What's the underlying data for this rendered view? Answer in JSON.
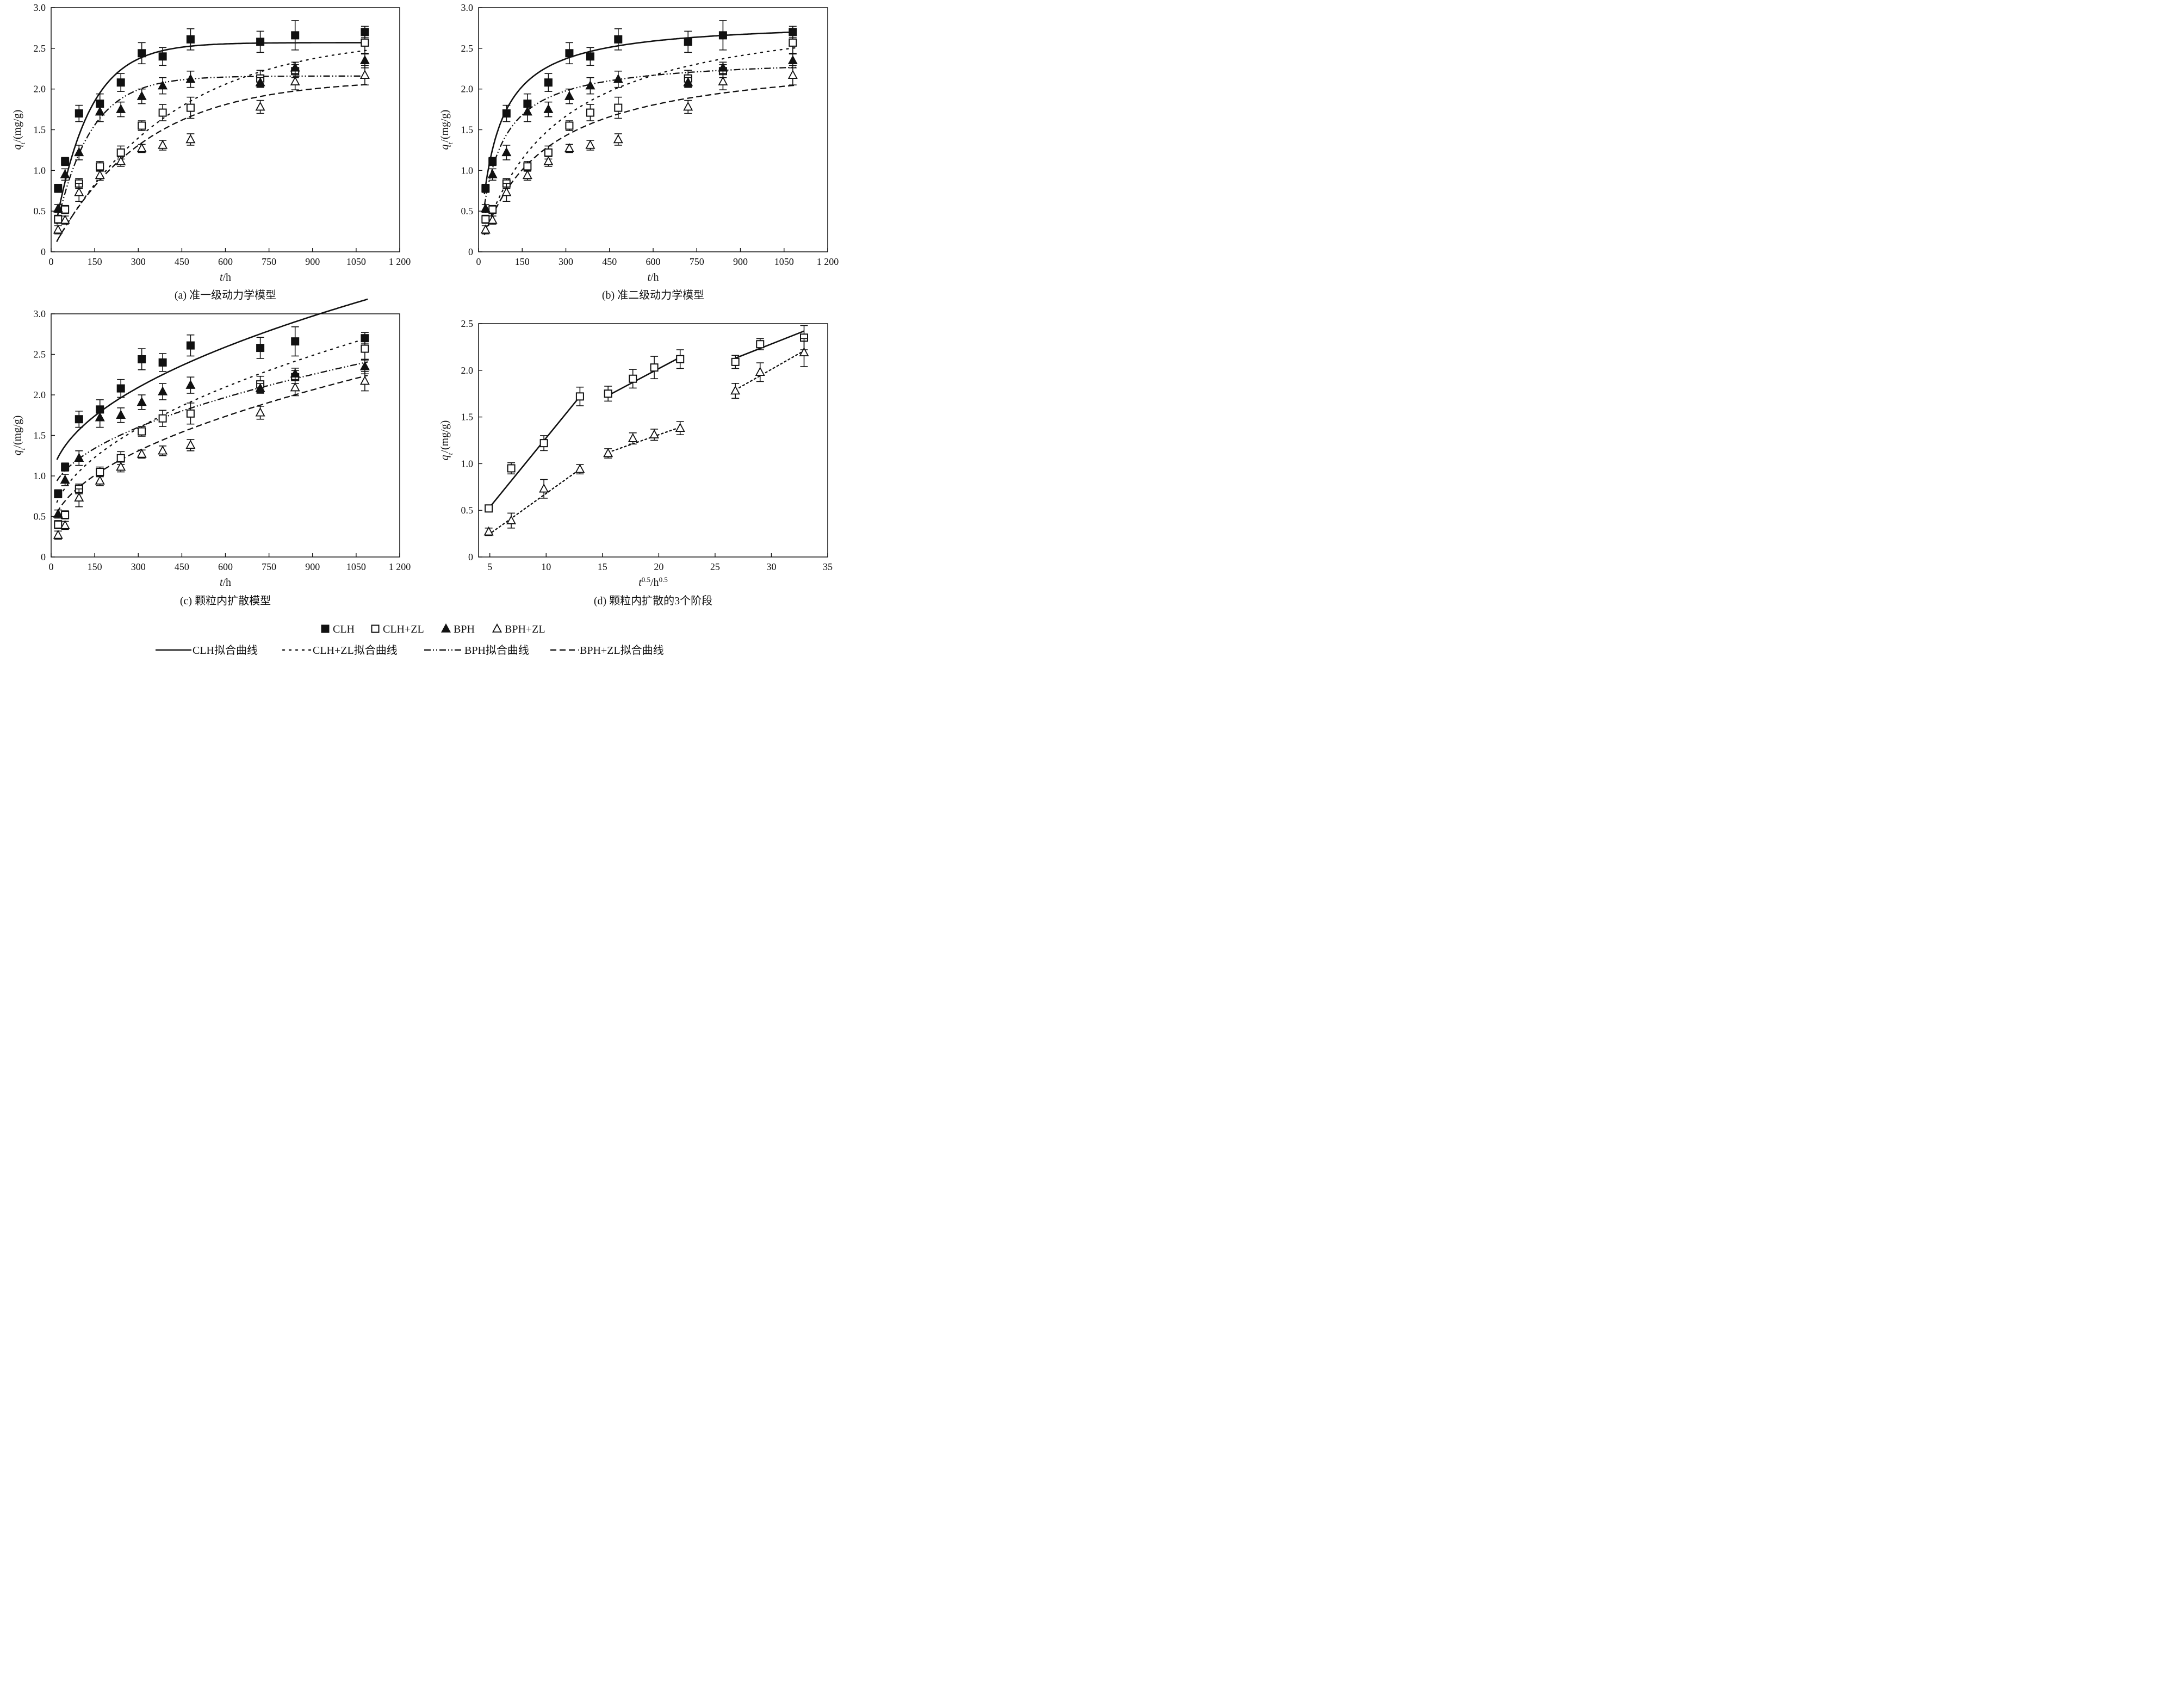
{
  "legend": {
    "markers": [
      {
        "key": "CLH",
        "label": "CLH",
        "marker": "filled-square"
      },
      {
        "key": "CLHZL",
        "label": "CLH+ZL",
        "marker": "open-square"
      },
      {
        "key": "BPH",
        "label": "BPH",
        "marker": "filled-triangle"
      },
      {
        "key": "BPHZL",
        "label": "BPH+ZL",
        "marker": "open-triangle"
      }
    ],
    "lines": [
      {
        "key": "CLH",
        "label": "CLH拟合曲线",
        "dash": "solid"
      },
      {
        "key": "CLHZL",
        "label": "CLH+ZL拟合曲线",
        "dash": "dotted"
      },
      {
        "key": "BPH",
        "label": "BPH拟合曲线",
        "dash": "dash-dot-dot"
      },
      {
        "key": "BPHZL",
        "label": "BPH+ZL拟合曲线",
        "dash": "dashed"
      }
    ]
  },
  "chart_data": [
    {
      "id": "a",
      "caption": "(a)  准一级动力学模型",
      "type": "scatter",
      "xlabel": {
        "var": "t",
        "unit": "/h"
      },
      "ylabel": {
        "var": "q",
        "sub": "t",
        "unit": "/(mg/g)"
      },
      "xlim": [
        0,
        1200
      ],
      "ylim": [
        0,
        3.0
      ],
      "xticks": [
        0,
        150,
        300,
        450,
        600,
        750,
        900,
        1050,
        1200
      ],
      "xtick_labels": [
        "0",
        "150",
        "300",
        "450",
        "600",
        "750",
        "900",
        "1050",
        "1 200"
      ],
      "yticks": [
        0,
        0.5,
        1.0,
        1.5,
        2.0,
        2.5,
        3.0
      ],
      "ytick_labels": [
        "0",
        "0.5",
        "1.0",
        "1.5",
        "2.0",
        "2.5",
        "3.0"
      ],
      "grid": false,
      "series": [
        {
          "key": "CLH",
          "x": [
            24,
            48,
            96,
            168,
            240,
            312,
            384,
            480,
            720,
            840,
            1080
          ],
          "y": [
            0.78,
            1.11,
            1.7,
            1.82,
            2.08,
            2.44,
            2.4,
            2.61,
            2.58,
            2.66,
            2.7
          ],
          "err": [
            0.05,
            0.05,
            0.1,
            0.12,
            0.11,
            0.13,
            0.11,
            0.13,
            0.13,
            0.18,
            0.07
          ]
        },
        {
          "key": "CLHZL",
          "x": [
            24,
            48,
            96,
            168,
            240,
            312,
            384,
            480,
            720,
            840,
            1080
          ],
          "y": [
            0.4,
            0.52,
            0.84,
            1.05,
            1.22,
            1.55,
            1.71,
            1.77,
            2.13,
            2.22,
            2.57
          ],
          "err": [
            0.05,
            0.05,
            0.06,
            0.06,
            0.08,
            0.06,
            0.1,
            0.13,
            0.1,
            0.08,
            0.14
          ]
        },
        {
          "key": "BPH",
          "x": [
            24,
            48,
            96,
            168,
            240,
            312,
            384,
            480,
            720,
            840,
            1080
          ],
          "y": [
            0.53,
            0.95,
            1.22,
            1.72,
            1.75,
            1.91,
            2.04,
            2.12,
            2.08,
            2.26,
            2.35
          ],
          "err": [
            0.05,
            0.07,
            0.09,
            0.12,
            0.09,
            0.09,
            0.1,
            0.1,
            0.06,
            0.07,
            0.09
          ]
        },
        {
          "key": "BPHZL",
          "x": [
            24,
            48,
            96,
            168,
            240,
            312,
            384,
            480,
            720,
            840,
            1080
          ],
          "y": [
            0.27,
            0.39,
            0.73,
            0.94,
            1.11,
            1.27,
            1.31,
            1.38,
            1.78,
            2.09,
            2.17
          ],
          "err": [
            0.05,
            0.05,
            0.11,
            0.06,
            0.06,
            0.05,
            0.06,
            0.07,
            0.08,
            0.1,
            0.12
          ]
        }
      ],
      "fits": [
        {
          "key": "CLH",
          "model": "PFO",
          "qe": 2.57,
          "k": 0.0085
        },
        {
          "key": "CLHZL",
          "model": "PFO",
          "qe": 2.65,
          "k": 0.0025
        },
        {
          "key": "BPH",
          "model": "PFO",
          "qe": 2.16,
          "k": 0.0085
        },
        {
          "key": "BPHZL",
          "model": "PFO",
          "qe": 2.12,
          "k": 0.0032
        }
      ],
      "fit_x_range": [
        20,
        1090
      ]
    },
    {
      "id": "b",
      "caption": "(b)  准二级动力学模型",
      "type": "scatter",
      "xlabel": {
        "var": "t",
        "unit": "/h"
      },
      "ylabel": {
        "var": "q",
        "sub": "t",
        "unit": "/(mg/g)"
      },
      "xlim": [
        0,
        1200
      ],
      "ylim": [
        0,
        3.0
      ],
      "xticks": [
        0,
        150,
        300,
        450,
        600,
        750,
        900,
        1050,
        1200
      ],
      "xtick_labels": [
        "0",
        "150",
        "300",
        "450",
        "600",
        "750",
        "900",
        "1050",
        "1 200"
      ],
      "yticks": [
        0,
        0.5,
        1.0,
        1.5,
        2.0,
        2.5,
        3.0
      ],
      "ytick_labels": [
        "0",
        "0.5",
        "1.0",
        "1.5",
        "2.0",
        "2.5",
        "3.0"
      ],
      "grid": false,
      "series": [
        {
          "key": "CLH",
          "x": [
            24,
            48,
            96,
            168,
            240,
            312,
            384,
            480,
            720,
            840,
            1080
          ],
          "y": [
            0.78,
            1.11,
            1.7,
            1.82,
            2.08,
            2.44,
            2.4,
            2.61,
            2.58,
            2.66,
            2.7
          ],
          "err": [
            0.05,
            0.05,
            0.1,
            0.12,
            0.11,
            0.13,
            0.11,
            0.13,
            0.13,
            0.18,
            0.07
          ]
        },
        {
          "key": "CLHZL",
          "x": [
            24,
            48,
            96,
            168,
            240,
            312,
            384,
            480,
            720,
            840,
            1080
          ],
          "y": [
            0.4,
            0.52,
            0.84,
            1.05,
            1.22,
            1.55,
            1.71,
            1.77,
            2.13,
            2.22,
            2.57
          ],
          "err": [
            0.05,
            0.05,
            0.06,
            0.06,
            0.08,
            0.06,
            0.1,
            0.13,
            0.1,
            0.08,
            0.14
          ]
        },
        {
          "key": "BPH",
          "x": [
            24,
            48,
            96,
            168,
            240,
            312,
            384,
            480,
            720,
            840,
            1080
          ],
          "y": [
            0.53,
            0.95,
            1.22,
            1.72,
            1.75,
            1.91,
            2.04,
            2.12,
            2.08,
            2.26,
            2.35
          ],
          "err": [
            0.05,
            0.07,
            0.09,
            0.12,
            0.09,
            0.09,
            0.1,
            0.1,
            0.06,
            0.07,
            0.09
          ]
        },
        {
          "key": "BPHZL",
          "x": [
            24,
            48,
            96,
            168,
            240,
            312,
            384,
            480,
            720,
            840,
            1080
          ],
          "y": [
            0.27,
            0.39,
            0.73,
            0.94,
            1.11,
            1.27,
            1.31,
            1.38,
            1.78,
            2.09,
            2.17
          ],
          "err": [
            0.05,
            0.05,
            0.11,
            0.06,
            0.06,
            0.05,
            0.06,
            0.07,
            0.08,
            0.1,
            0.12
          ]
        }
      ],
      "fits": [
        {
          "key": "CLH",
          "model": "PSO",
          "qe": 2.85,
          "k": 0.0058
        },
        {
          "key": "CLHZL",
          "model": "PSO",
          "qe": 3.1,
          "k": 0.00125
        },
        {
          "key": "BPH",
          "model": "PSO",
          "qe": 2.4,
          "k": 0.0065
        },
        {
          "key": "BPHZL",
          "model": "PSO",
          "qe": 2.45,
          "k": 0.0019
        }
      ],
      "fit_x_range": [
        20,
        1090
      ]
    },
    {
      "id": "c",
      "caption": "(c)  颗粒内扩散模型",
      "type": "scatter",
      "xlabel": {
        "var": "t",
        "unit": "/h"
      },
      "ylabel": {
        "var": "q",
        "sub": "t",
        "unit": "/(mg/g)"
      },
      "xlim": [
        0,
        1200
      ],
      "ylim": [
        0,
        3.0
      ],
      "xticks": [
        0,
        150,
        300,
        450,
        600,
        750,
        900,
        1050,
        1200
      ],
      "xtick_labels": [
        "0",
        "150",
        "300",
        "450",
        "600",
        "750",
        "900",
        "1050",
        "1 200"
      ],
      "yticks": [
        0,
        0.5,
        1.0,
        1.5,
        2.0,
        2.5,
        3.0
      ],
      "ytick_labels": [
        "0",
        "0.5",
        "1.0",
        "1.5",
        "2.0",
        "2.5",
        "3.0"
      ],
      "grid": false,
      "series": [
        {
          "key": "CLH",
          "x": [
            24,
            48,
            96,
            168,
            240,
            312,
            384,
            480,
            720,
            840,
            1080
          ],
          "y": [
            0.78,
            1.11,
            1.7,
            1.82,
            2.08,
            2.44,
            2.4,
            2.61,
            2.58,
            2.66,
            2.7
          ],
          "err": [
            0.05,
            0.05,
            0.1,
            0.12,
            0.11,
            0.13,
            0.11,
            0.13,
            0.13,
            0.18,
            0.07
          ]
        },
        {
          "key": "CLHZL",
          "x": [
            24,
            48,
            96,
            168,
            240,
            312,
            384,
            480,
            720,
            840,
            1080
          ],
          "y": [
            0.4,
            0.52,
            0.84,
            1.05,
            1.22,
            1.55,
            1.71,
            1.77,
            2.13,
            2.22,
            2.57
          ],
          "err": [
            0.05,
            0.05,
            0.06,
            0.06,
            0.08,
            0.06,
            0.1,
            0.13,
            0.1,
            0.08,
            0.14
          ]
        },
        {
          "key": "BPH",
          "x": [
            24,
            48,
            96,
            168,
            240,
            312,
            384,
            480,
            720,
            840,
            1080
          ],
          "y": [
            0.53,
            0.95,
            1.22,
            1.72,
            1.75,
            1.91,
            2.04,
            2.12,
            2.08,
            2.26,
            2.35
          ],
          "err": [
            0.05,
            0.07,
            0.09,
            0.12,
            0.09,
            0.09,
            0.1,
            0.1,
            0.06,
            0.07,
            0.09
          ]
        },
        {
          "key": "BPHZL",
          "x": [
            24,
            48,
            96,
            168,
            240,
            312,
            384,
            480,
            720,
            840,
            1080
          ],
          "y": [
            0.27,
            0.39,
            0.73,
            0.94,
            1.11,
            1.27,
            1.31,
            1.38,
            1.78,
            2.09,
            2.17
          ],
          "err": [
            0.05,
            0.05,
            0.11,
            0.06,
            0.06,
            0.05,
            0.06,
            0.07,
            0.08,
            0.1,
            0.12
          ]
        }
      ],
      "fits": [
        {
          "key": "CLH",
          "model": "IPD",
          "kid": 0.0694,
          "C": 0.89
        },
        {
          "key": "CLHZL",
          "model": "IPD",
          "kid": 0.0709,
          "C": 0.36
        },
        {
          "key": "BPH",
          "model": "IPD",
          "kid": 0.0514,
          "C": 0.71
        },
        {
          "key": "BPHZL",
          "model": "IPD",
          "kid": 0.0594,
          "C": 0.28
        }
      ],
      "fit_x_range": [
        20,
        1090
      ]
    },
    {
      "id": "d",
      "caption": "(d)  颗粒内扩散的3个阶段",
      "type": "scatter",
      "xlabel": {
        "var": "t",
        "sup": "0.5",
        "unit": "/h",
        "unit_sup": "0.5"
      },
      "ylabel": {
        "var": "q",
        "sub": "t",
        "unit": "/(mg/g)"
      },
      "xlim": [
        4,
        35
      ],
      "ylim": [
        0,
        2.5
      ],
      "xticks": [
        5,
        10,
        15,
        20,
        25,
        30,
        35
      ],
      "xtick_labels": [
        "5",
        "10",
        "15",
        "20",
        "25",
        "30",
        "35"
      ],
      "yticks": [
        0,
        0.5,
        1.0,
        1.5,
        2.0,
        2.5
      ],
      "ytick_labels": [
        "0",
        "0.5",
        "1.0",
        "1.5",
        "2.0",
        "2.5"
      ],
      "grid": false,
      "series": [
        {
          "key": "CLHZL",
          "x": [
            4.9,
            6.9,
            9.8,
            13.0,
            15.5,
            17.7,
            19.6,
            21.9,
            26.8,
            29.0,
            32.9
          ],
          "y": [
            0.52,
            0.95,
            1.22,
            1.72,
            1.75,
            1.91,
            2.03,
            2.12,
            2.09,
            2.28,
            2.35
          ],
          "err": [
            0.02,
            0.06,
            0.08,
            0.1,
            0.08,
            0.1,
            0.12,
            0.1,
            0.07,
            0.06,
            0.13
          ]
        },
        {
          "key": "BPHZL",
          "x": [
            4.9,
            6.9,
            9.8,
            13.0,
            15.5,
            17.7,
            19.6,
            21.9,
            26.8,
            29.0,
            32.9
          ],
          "y": [
            0.27,
            0.39,
            0.73,
            0.94,
            1.11,
            1.27,
            1.31,
            1.38,
            1.78,
            1.98,
            2.19
          ],
          "err": [
            0.04,
            0.08,
            0.1,
            0.05,
            0.05,
            0.06,
            0.06,
            0.07,
            0.08,
            0.1,
            0.15
          ]
        }
      ],
      "fits": [
        {
          "key": "CLH",
          "segments": [
            [
              4.9,
              0.52,
              13.0,
              1.72
            ],
            [
              15.5,
              1.73,
              21.9,
              2.14
            ],
            [
              26.8,
              2.13,
              32.9,
              2.42
            ]
          ]
        },
        {
          "key": "CLHZL",
          "segments": [
            [
              4.9,
              0.24,
              13.0,
              0.94
            ],
            [
              15.5,
              1.12,
              21.9,
              1.39
            ],
            [
              26.8,
              1.79,
              32.9,
              2.21
            ]
          ]
        }
      ]
    }
  ]
}
